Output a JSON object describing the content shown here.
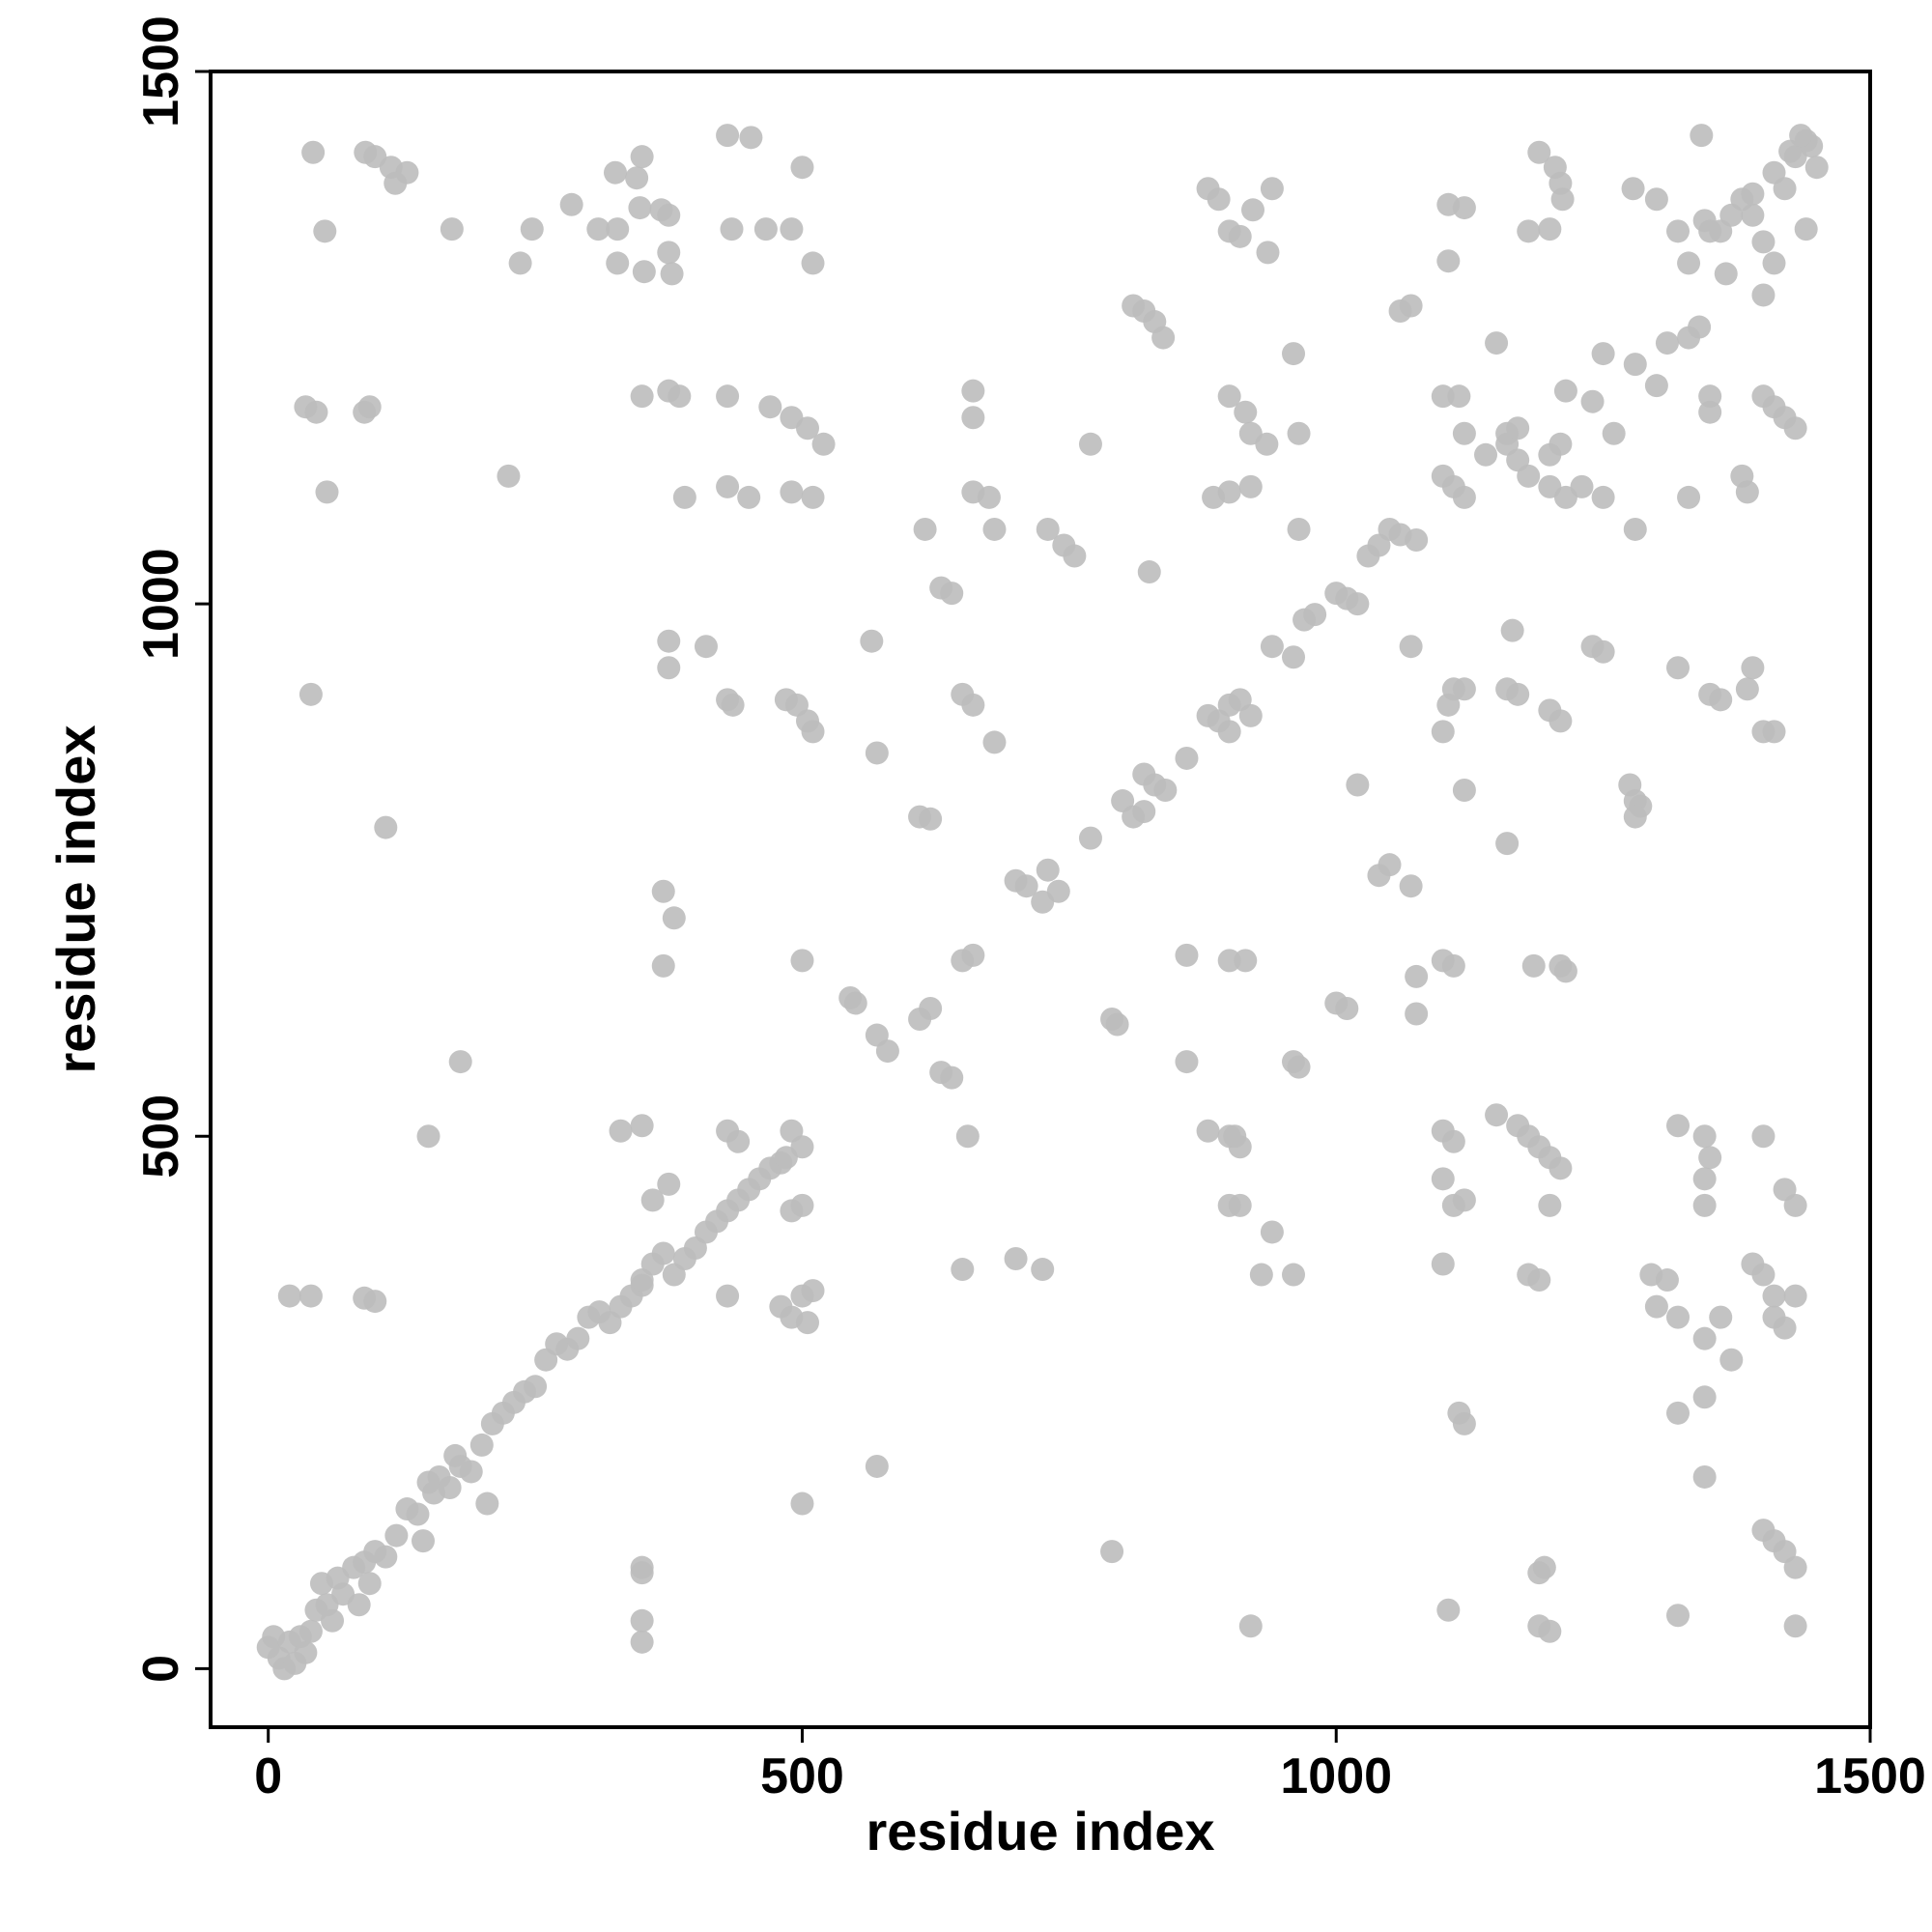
{
  "chart_data": {
    "type": "scatter",
    "xlabel": "residue index",
    "ylabel": "residue index",
    "color": "#bdbdbd",
    "xlim": [
      -54,
      1500
    ],
    "ylim": [
      -55,
      1500
    ],
    "xticks": [
      0,
      500,
      1000,
      1500
    ],
    "yticks": [
      0,
      500,
      1000,
      1500
    ],
    "x": [
      42,
      91,
      100,
      115,
      130,
      119,
      53,
      172,
      247,
      284,
      309,
      327,
      327,
      325,
      345,
      350,
      348,
      368,
      375,
      375,
      378,
      352,
      430,
      452,
      434,
      466,
      490,
      500,
      510,
      236,
      880,
      890,
      900,
      910,
      922,
      940,
      936,
      1105,
      1120,
      1105,
      1190,
      1205,
      1210,
      1212,
      1200,
      1180,
      1278,
      1300,
      1320,
      1342,
      1345,
      1360,
      1380,
      1390,
      1400,
      1410,
      1420,
      1430,
      1440,
      1445,
      1450,
      1440,
      1400,
      1365,
      1330,
      810,
      820,
      830,
      838,
      1070,
      1060,
      960,
      1150,
      1215,
      1240,
      1250,
      1280,
      1300,
      1310,
      1330,
      1340,
      35,
      45,
      90,
      95,
      350,
      375,
      385,
      430,
      470,
      490,
      505,
      520,
      660,
      660,
      900,
      915,
      920,
      935,
      770,
      965,
      1100,
      1115,
      1120,
      1140,
      1160,
      1170,
      1180,
      1200,
      1210,
      1230,
      1250,
      1260,
      1350,
      1400,
      1410,
      1420,
      1430,
      1350,
      225,
      55,
      390,
      430,
      450,
      490,
      510,
      660,
      675,
      885,
      900,
      920,
      1100,
      1110,
      1120,
      1200,
      1215,
      1380,
      1385,
      1330,
      615,
      730,
      745,
      755,
      680,
      965,
      1040,
      1050,
      1060,
      1075,
      1030,
      1280,
      825,
      630,
      640,
      1000,
      1010,
      1020,
      980,
      970,
      375,
      410,
      565,
      650,
      660,
      940,
      960,
      1070,
      1165,
      1240,
      1250,
      40,
      430,
      435,
      485,
      495,
      510,
      505,
      880,
      890,
      900,
      910,
      920,
      900,
      1105,
      1110,
      1120,
      1100,
      1160,
      1170,
      1200,
      1210,
      1320,
      1350,
      1360,
      1385,
      1390,
      1400,
      1410,
      375,
      570,
      680,
      860,
      830,
      820,
      840,
      800,
      810,
      820,
      1020,
      1120,
      1275,
      1280,
      1285,
      1280,
      610,
      620,
      770,
      1160,
      730,
      700,
      710,
      740,
      725,
      1050,
      1040,
      1070,
      370,
      380,
      110,
      860,
      370,
      500,
      650,
      660,
      900,
      915,
      1075,
      1100,
      1110,
      1185,
      1210,
      1215,
      545,
      550,
      610,
      620,
      1000,
      1010,
      1075,
      790,
      795,
      570,
      580,
      630,
      640,
      860,
      960,
      965,
      180,
      150,
      330,
      350,
      430,
      440,
      490,
      500,
      655,
      880,
      900,
      910,
      905,
      1100,
      1110,
      1150,
      1170,
      1180,
      1190,
      1200,
      1210,
      1320,
      1345,
      1350,
      1345,
      1400,
      1420,
      1430,
      360,
      375,
      500,
      490,
      900,
      910,
      1100,
      1110,
      1120,
      1345,
      1200,
      940,
      1100,
      1180,
      1190,
      700,
      725,
      650,
      960,
      930,
      20,
      40,
      90,
      100,
      350,
      430,
      480,
      500,
      510,
      490,
      505,
      1295,
      1310,
      1300,
      1320,
      1345,
      1360,
      1390,
      1400,
      1410,
      1430,
      1410,
      1420,
      1370,
      570,
      500,
      350,
      350,
      1115,
      1120,
      1320,
      1345,
      1345,
      790,
      1400,
      1410,
      1420,
      1430,
      1190,
      1195,
      1105,
      1320,
      350,
      350,
      920,
      1190,
      1200,
      1430,
      0,
      5,
      10,
      15,
      20,
      25,
      30,
      35,
      40,
      45,
      50,
      55,
      60,
      65,
      70,
      80,
      85,
      90,
      95,
      100,
      110,
      120,
      130,
      140,
      145,
      150,
      155,
      160,
      170,
      175,
      180,
      190,
      200,
      205,
      210,
      220,
      230,
      240,
      250,
      260,
      270,
      280,
      290,
      300,
      310,
      320,
      330,
      340,
      350,
      360,
      370,
      380,
      390,
      400,
      410,
      420,
      430,
      440,
      450,
      460,
      470,
      480,
      485,
      1160,
      1170,
      1350,
      1370,
      1390,
      1410,
      1425,
      1435
    ],
    "values": [
      1424,
      1424,
      1420,
      1410,
      1405,
      1395,
      1350,
      1352,
      1352,
      1375,
      1352,
      1352,
      1320,
      1405,
      1400,
      1420,
      1372,
      1370,
      1365,
      1330,
      1310,
      1312,
      1440,
      1438,
      1352,
      1352,
      1352,
      1410,
      1320,
      1320,
      1390,
      1380,
      1350,
      1345,
      1370,
      1390,
      1330,
      1375,
      1372,
      1322,
      1424,
      1410,
      1395,
      1380,
      1352,
      1350,
      1390,
      1380,
      1350,
      1440,
      1360,
      1350,
      1380,
      1365,
      1340,
      1320,
      1390,
      1420,
      1435,
      1430,
      1410,
      1352,
      1290,
      1310,
      1320,
      1280,
      1275,
      1265,
      1250,
      1280,
      1275,
      1235,
      1245,
      1200,
      1190,
      1235,
      1225,
      1205,
      1245,
      1250,
      1260,
      1185,
      1180,
      1180,
      1185,
      1195,
      1200,
      1195,
      1195,
      1185,
      1175,
      1165,
      1150,
      1200,
      1175,
      1195,
      1180,
      1160,
      1150,
      1150,
      1160,
      1195,
      1195,
      1160,
      1140,
      1150,
      1135,
      1120,
      1140,
      1150,
      1110,
      1100,
      1160,
      1195,
      1195,
      1185,
      1175,
      1165,
      1180,
      1120,
      1105,
      1100,
      1110,
      1100,
      1105,
      1100,
      1105,
      1100,
      1100,
      1105,
      1110,
      1120,
      1110,
      1100,
      1110,
      1100,
      1120,
      1105,
      1100,
      1070,
      1070,
      1055,
      1045,
      1070,
      1070,
      1055,
      1070,
      1065,
      1060,
      1045,
      1070,
      1030,
      1015,
      1010,
      1010,
      1005,
      1000,
      990,
      985,
      965,
      960,
      965,
      915,
      905,
      960,
      950,
      960,
      975,
      960,
      955,
      915,
      910,
      905,
      910,
      905,
      880,
      890,
      895,
      890,
      905,
      910,
      895,
      880,
      905,
      920,
      920,
      880,
      920,
      915,
      900,
      890,
      940,
      915,
      910,
      920,
      940,
      880,
      880,
      940,
      860,
      870,
      855,
      830,
      840,
      825,
      815,
      800,
      805,
      830,
      825,
      830,
      815,
      810,
      800,
      800,
      798,
      780,
      775,
      750,
      740,
      735,
      730,
      720,
      755,
      745,
      735,
      730,
      705,
      790,
      670,
      660,
      665,
      665,
      670,
      665,
      665,
      650,
      665,
      660,
      660,
      660,
      655,
      630,
      625,
      610,
      620,
      625,
      620,
      615,
      610,
      605,
      595,
      580,
      560,
      555,
      570,
      570,
      565,
      570,
      500,
      505,
      510,
      505,
      495,
      505,
      490,
      500,
      505,
      500,
      490,
      500,
      505,
      495,
      520,
      510,
      500,
      490,
      480,
      470,
      510,
      500,
      480,
      460,
      500,
      450,
      435,
      440,
      455,
      435,
      430,
      435,
      435,
      460,
      435,
      440,
      435,
      435,
      410,
      380,
      370,
      365,
      385,
      375,
      375,
      370,
      370,
      350,
      350,
      348,
      345,
      360,
      350,
      340,
      350,
      355,
      330,
      325,
      370,
      365,
      340,
      330,
      310,
      330,
      380,
      370,
      350,
      350,
      330,
      320,
      290,
      190,
      155,
      95,
      90,
      240,
      230,
      240,
      255,
      180,
      110,
      130,
      120,
      110,
      95,
      90,
      95,
      55,
      50,
      45,
      25,
      40,
      40,
      35,
      40,
      20,
      30,
      10,
      0,
      25,
      5,
      30,
      15,
      35,
      55,
      80,
      60,
      45,
      85,
      70,
      95,
      60,
      100,
      80,
      110,
      105,
      125,
      150,
      145,
      120,
      175,
      165,
      180,
      170,
      200,
      190,
      185,
      210,
      155,
      230,
      240,
      250,
      260,
      265,
      290,
      305,
      300,
      310,
      330,
      335,
      325,
      340,
      350,
      365,
      380,
      390,
      370,
      385,
      395,
      410,
      420,
      430,
      440,
      450,
      460,
      470,
      475,
      480,
      1160,
      1165,
      1350,
      1365,
      1385,
      1405,
      1425,
      1440
    ]
  }
}
